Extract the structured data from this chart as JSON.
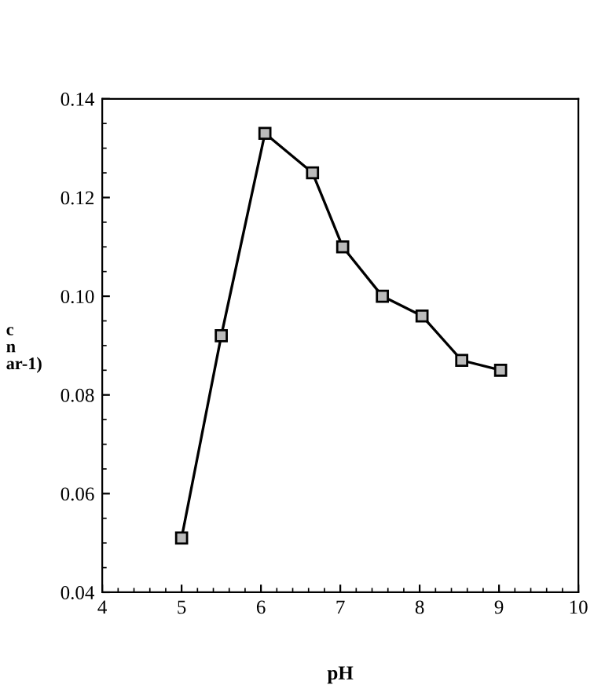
{
  "chart_data": {
    "type": "line",
    "xlabel": "pH",
    "ylabel": "c\nn\nar-1)",
    "x": [
      5,
      5.5,
      6.05,
      6.65,
      7.03,
      7.53,
      8.03,
      8.53,
      9.02
    ],
    "series": [
      {
        "color": "#000000",
        "values": [
          0.051,
          0.092,
          0.133,
          0.125,
          0.11,
          0.1,
          0.096,
          0.087,
          0.085
        ]
      }
    ],
    "marker": "square",
    "line_style": "solid",
    "xlim": [
      4,
      10
    ],
    "xticks": [
      4,
      5,
      6,
      7,
      8,
      9,
      10
    ],
    "ylim": [
      0.04,
      0.14
    ],
    "yticks": [
      {
        "value": 0.04,
        "label": "0.04"
      },
      {
        "value": 0.06,
        "label": "0.06"
      },
      {
        "value": 0.08,
        "label": "0.08"
      },
      {
        "value": 0.1,
        "label": "0.10"
      },
      {
        "value": 0.12,
        "label": "0.12"
      },
      {
        "value": 0.14,
        "label": "0.14"
      }
    ],
    "grid": false,
    "legend": false
  }
}
